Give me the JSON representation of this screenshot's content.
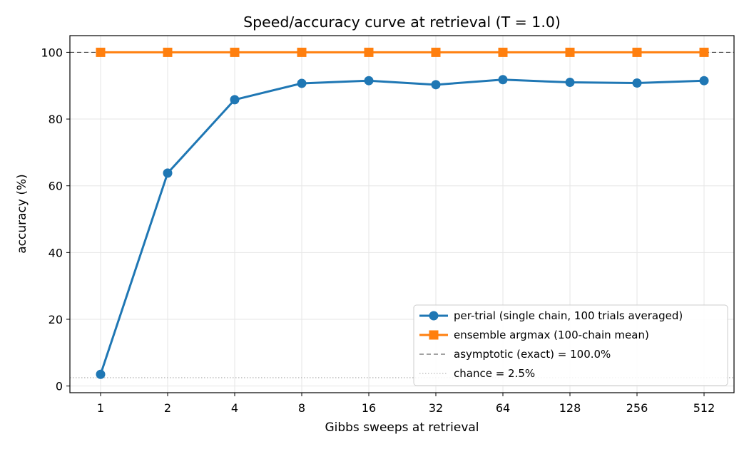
{
  "chart_data": {
    "type": "line",
    "title": "Speed/accuracy curve at retrieval (T = 1.0)",
    "xlabel": "Gibbs sweeps at retrieval",
    "ylabel": "accuracy (%)",
    "x_scale": "log2",
    "categories": [
      "1",
      "2",
      "4",
      "8",
      "16",
      "32",
      "64",
      "128",
      "256",
      "512"
    ],
    "x": [
      1,
      2,
      4,
      8,
      16,
      32,
      64,
      128,
      256,
      512
    ],
    "ylim": [
      -2,
      105
    ],
    "yticks": [
      "0",
      "20",
      "40",
      "60",
      "80",
      "100"
    ],
    "grid": true,
    "legend_position": "lower-right",
    "series": [
      {
        "name": "per-trial (single chain, 100 trials averaged)",
        "values": [
          3.5,
          63.8,
          85.8,
          90.7,
          91.5,
          90.3,
          91.8,
          91.0,
          90.8,
          91.5
        ],
        "color": "#1f77b4",
        "marker": "circle"
      },
      {
        "name": "ensemble argmax (100-chain mean)",
        "values": [
          100,
          100,
          100,
          100,
          100,
          100,
          100,
          100,
          100,
          100
        ],
        "color": "#ff7f0e",
        "marker": "square"
      }
    ],
    "reference_lines": [
      {
        "name": "asymptotic (exact) = 100.0%",
        "y": 100,
        "style": "dashed",
        "color": "#444444"
      },
      {
        "name": "chance = 2.5%",
        "y": 2.5,
        "style": "dotted",
        "color": "#aaaaaa"
      }
    ]
  }
}
